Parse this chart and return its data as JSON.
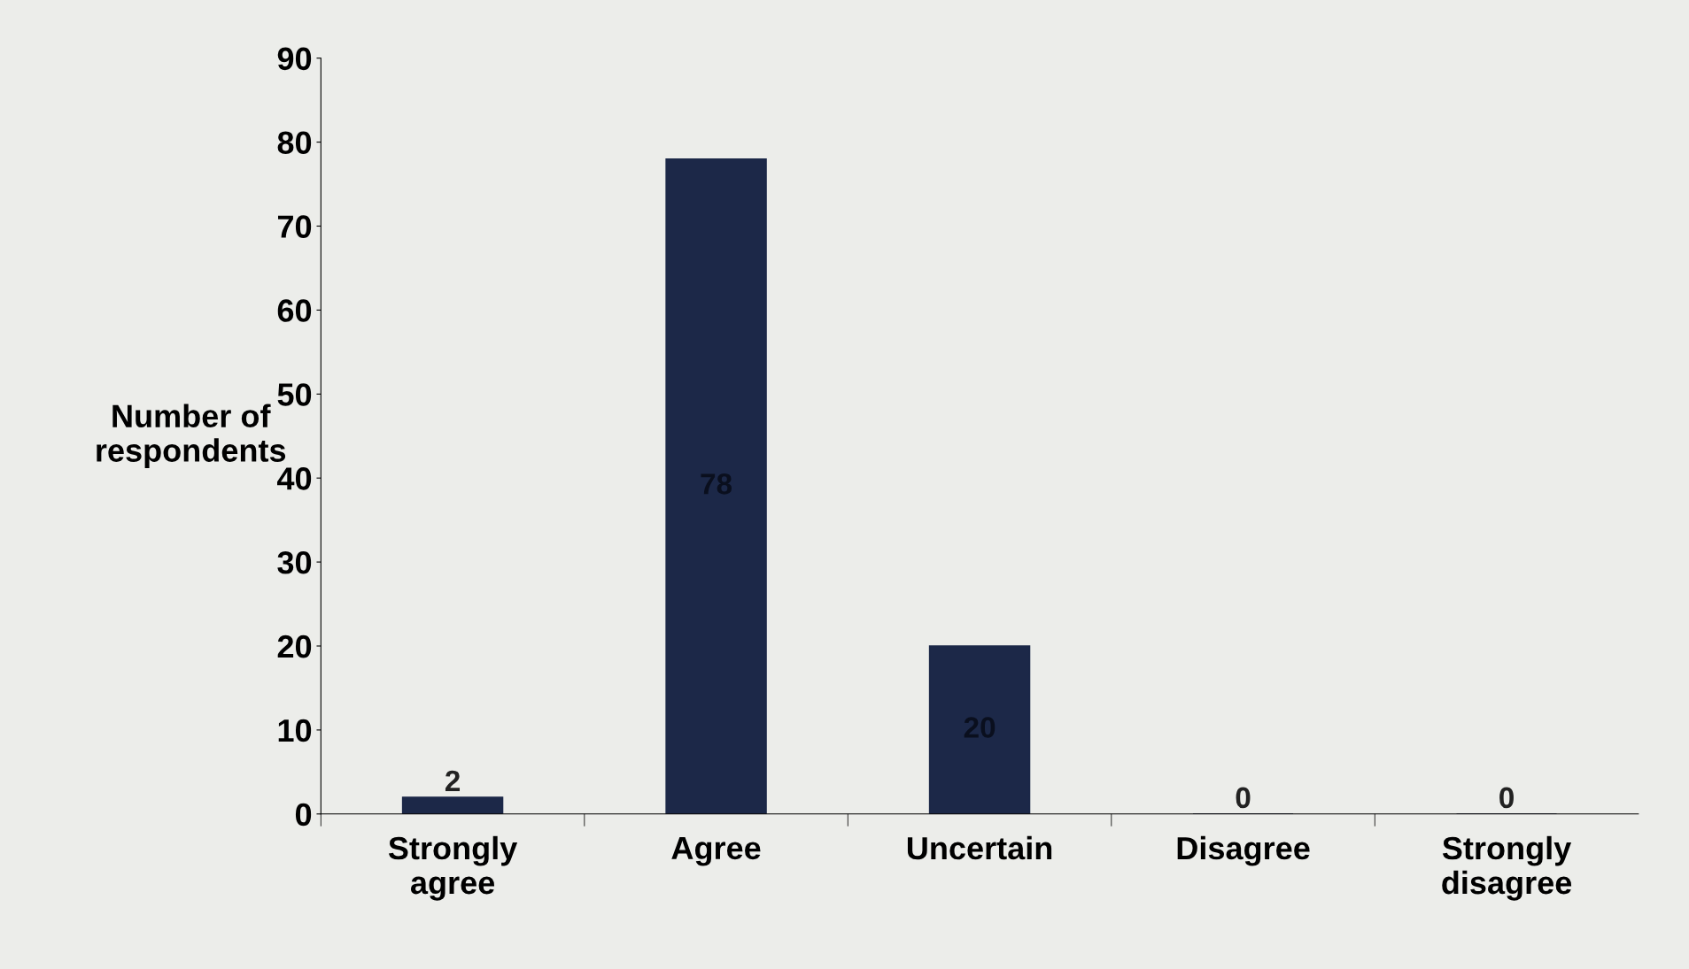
{
  "chart_data": {
    "type": "bar",
    "ylabel": "Number of\nrespondents",
    "categories": [
      "Strongly\nagree",
      "Agree",
      "Uncertain",
      "Disagree",
      "Strongly\ndisagree"
    ],
    "values": [
      2,
      78,
      20,
      0,
      0
    ],
    "color": "#1c2848",
    "ylim": [
      0,
      90
    ],
    "yticks": [
      0,
      10,
      20,
      30,
      40,
      50,
      60,
      70,
      80,
      90
    ],
    "grid": false,
    "data_labels": true
  }
}
